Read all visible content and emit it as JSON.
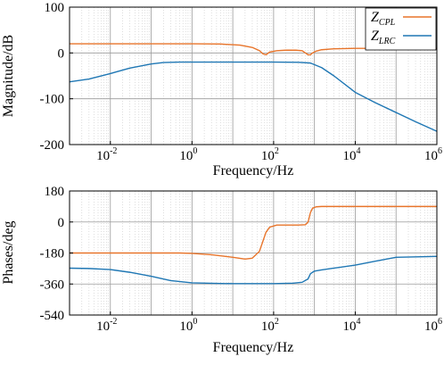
{
  "chart_data": [
    {
      "type": "line",
      "xscale": "log",
      "xlim": [
        0.001,
        1000000
      ],
      "ylim": [
        -200,
        100
      ],
      "yticks": [
        100,
        0,
        -100,
        -200
      ],
      "xtick_labels": [
        {
          "base": "10",
          "exp": "-2",
          "value": 0.01
        },
        {
          "base": "10",
          "exp": "0",
          "value": 1
        },
        {
          "base": "10",
          "exp": "2",
          "value": 100
        },
        {
          "base": "10",
          "exp": "4",
          "value": 10000
        },
        {
          "base": "10",
          "exp": "6",
          "value": 1000000
        }
      ],
      "xlabel": "Frequency/Hz",
      "ylabel": "Magnitude/dB",
      "grid": true,
      "legend": {
        "position": "top-right",
        "entries": [
          {
            "main": "Z",
            "sub": "CPL"
          },
          {
            "main": "Z",
            "sub": "LRC"
          }
        ]
      },
      "series": [
        {
          "color": "#e8742a",
          "x": [
            0.001,
            0.01,
            0.1,
            1,
            5,
            15,
            30,
            45,
            55,
            65,
            80,
            120,
            200,
            350,
            500,
            600,
            700,
            800,
            900,
            1100,
            1500,
            3000,
            10000,
            100000,
            1000000
          ],
          "y": [
            20,
            20,
            20,
            20,
            19.5,
            17,
            12,
            5,
            -2,
            -4,
            2,
            5,
            6,
            6,
            5,
            0,
            -4,
            -4,
            0,
            4,
            7,
            9,
            10,
            10,
            10
          ]
        },
        {
          "color": "#1f77b4",
          "x": [
            0.001,
            0.003,
            0.01,
            0.03,
            0.1,
            0.2,
            0.5,
            1,
            10,
            100,
            400,
            800,
            1500,
            3000,
            10000,
            30000,
            100000,
            300000,
            1000000
          ],
          "y": [
            -63,
            -57,
            -45,
            -33,
            -24,
            -21,
            -20,
            -20,
            -20,
            -20,
            -20.5,
            -22,
            -32,
            -50,
            -86,
            -108,
            -130,
            -150,
            -171
          ]
        }
      ]
    },
    {
      "type": "line",
      "xscale": "log",
      "xlim": [
        0.001,
        1000000
      ],
      "ylim": [
        -540,
        180
      ],
      "yticks": [
        180,
        0,
        -180,
        -360,
        -540
      ],
      "xtick_labels": [
        {
          "base": "10",
          "exp": "-2",
          "value": 0.01
        },
        {
          "base": "10",
          "exp": "0",
          "value": 1
        },
        {
          "base": "10",
          "exp": "2",
          "value": 100
        },
        {
          "base": "10",
          "exp": "4",
          "value": 10000
        },
        {
          "base": "10",
          "exp": "6",
          "value": 1000000
        }
      ],
      "xlabel": "Frequency/Hz",
      "ylabel": "Phases/deg",
      "grid": true,
      "series": [
        {
          "color": "#e8742a",
          "x": [
            0.001,
            0.01,
            0.1,
            0.5,
            1,
            3,
            10,
            20,
            30,
            45,
            55,
            65,
            80,
            120,
            200,
            400,
            600,
            700,
            800,
            900,
            1100,
            1500,
            10000,
            100000,
            1000000
          ],
          "y": [
            -180,
            -180,
            -180,
            -180,
            -182,
            -190,
            -205,
            -215,
            -210,
            -170,
            -110,
            -60,
            -30,
            -18,
            -18,
            -18,
            -16,
            0,
            55,
            80,
            88,
            90,
            90,
            90,
            90
          ]
        },
        {
          "color": "#1f77b4",
          "x": [
            0.001,
            0.003,
            0.01,
            0.03,
            0.1,
            0.3,
            1,
            3,
            10,
            30,
            100,
            300,
            500,
            700,
            800,
            1000,
            1500,
            3000,
            10000,
            30000,
            100000,
            1000000
          ],
          "y": [
            -268,
            -270,
            -276,
            -292,
            -315,
            -340,
            -353,
            -356,
            -358,
            -358,
            -358,
            -355,
            -350,
            -330,
            -300,
            -285,
            -278,
            -268,
            -250,
            -228,
            -205,
            -200
          ]
        }
      ]
    }
  ]
}
